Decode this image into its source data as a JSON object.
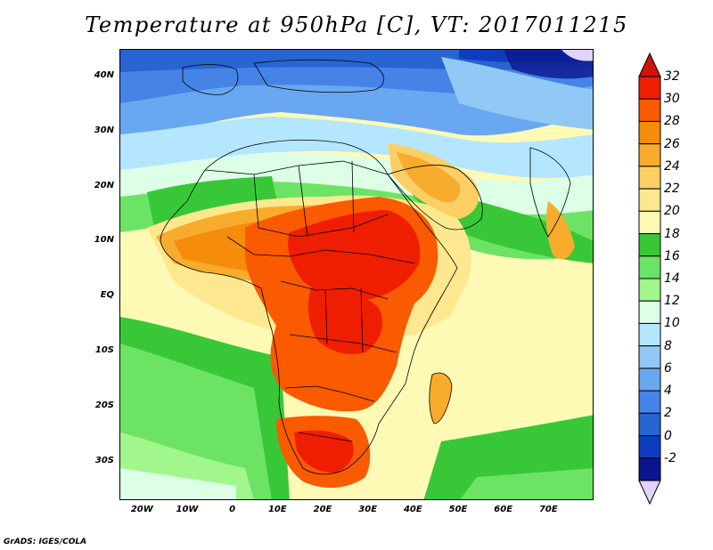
{
  "title": "Temperature at 950hPa [C], VT: 2017011215",
  "credit": "GrADS: IGES/COLA",
  "map": {
    "region": "Africa and surrounding seas",
    "variable": "Temperature at 950hPa",
    "units": "C",
    "valid_time": "2017011215",
    "lon_range": [
      -25,
      80
    ],
    "lat_range": [
      -37,
      45
    ],
    "lat_ticks": [
      {
        "value": 40,
        "label": "40N"
      },
      {
        "value": 30,
        "label": "30N"
      },
      {
        "value": 20,
        "label": "20N"
      },
      {
        "value": 10,
        "label": "10N"
      },
      {
        "value": 0,
        "label": "EQ"
      },
      {
        "value": -10,
        "label": "10S"
      },
      {
        "value": -20,
        "label": "20S"
      },
      {
        "value": -30,
        "label": "30S"
      }
    ],
    "lon_ticks": [
      {
        "value": -20,
        "label": "20W"
      },
      {
        "value": -10,
        "label": "10W"
      },
      {
        "value": 0,
        "label": "0"
      },
      {
        "value": 10,
        "label": "10E"
      },
      {
        "value": 20,
        "label": "20E"
      },
      {
        "value": 30,
        "label": "30E"
      },
      {
        "value": 40,
        "label": "40E"
      },
      {
        "value": 50,
        "label": "50E"
      },
      {
        "value": 60,
        "label": "60E"
      },
      {
        "value": 70,
        "label": "70E"
      }
    ]
  },
  "colorbar": {
    "levels": [
      "32",
      "30",
      "28",
      "26",
      "24",
      "22",
      "20",
      "18",
      "16",
      "14",
      "12",
      "10",
      "8",
      "6",
      "4",
      "2",
      "0",
      "-2"
    ],
    "colors": [
      "#f01e00",
      "#fa5a00",
      "#f58c0a",
      "#f7ac2e",
      "#fbcf63",
      "#fde88f",
      "#fefab6",
      "#38c837",
      "#6de365",
      "#a1f78c",
      "#dcffe6",
      "#b4e6ff",
      "#92c8f5",
      "#69a8f0",
      "#4683e6",
      "#2864d2",
      "#0f3cbe",
      "#0a168c"
    ],
    "top_color": "#d2140a",
    "bottom_color": "#e1d2ff"
  }
}
